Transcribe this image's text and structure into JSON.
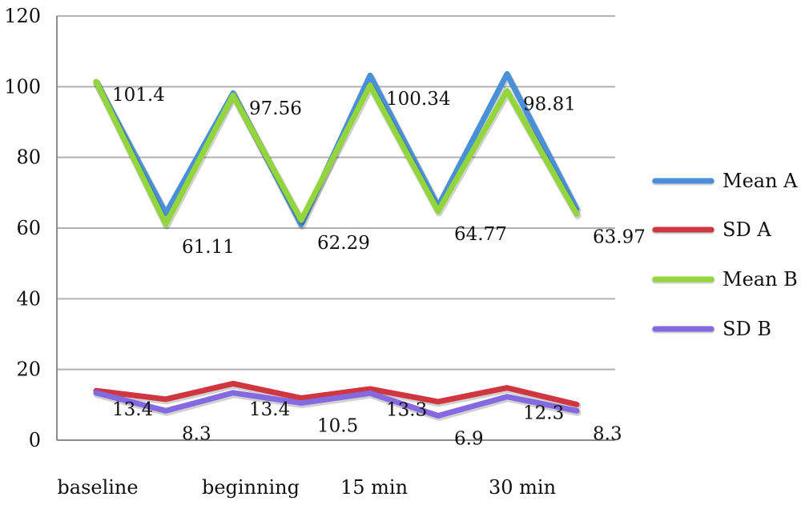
{
  "chart_data": {
    "type": "line",
    "categories": [
      "baseline",
      "",
      "beginning",
      "",
      "15 min",
      "",
      "30 min",
      ""
    ],
    "ylim": [
      0,
      120
    ],
    "yticks": [
      0,
      20,
      40,
      60,
      80,
      100,
      120
    ],
    "grid": true,
    "legend_position": "right",
    "series": [
      {
        "name": "Mean A",
        "color": "#4a90d9",
        "values": [
          101.4,
          64.2,
          98.2,
          61.0,
          103.2,
          66.2,
          103.6,
          65.4
        ]
      },
      {
        "name": "SD A",
        "color": "#d0363f",
        "values": [
          14.0,
          11.6,
          16.0,
          11.9,
          14.5,
          10.9,
          14.8,
          10.1
        ]
      },
      {
        "name": "Mean B",
        "color": "#93d63c",
        "values": [
          101.4,
          61.11,
          97.56,
          62.29,
          100.34,
          64.77,
          98.81,
          63.97
        ]
      },
      {
        "name": "SD B",
        "color": "#8469e0",
        "values": [
          13.4,
          8.3,
          13.4,
          10.5,
          13.3,
          6.9,
          12.3,
          8.3
        ]
      }
    ],
    "data_labels": {
      "mean": [
        "101.4",
        "61.11",
        "97.56",
        "62.29",
        "100.34",
        "64.77",
        "98.81",
        "63.97"
      ],
      "sd": [
        "13.4",
        "8.3",
        "13.4",
        "10.5",
        "13.3",
        "6.9",
        "12.3",
        "8.3"
      ]
    }
  }
}
